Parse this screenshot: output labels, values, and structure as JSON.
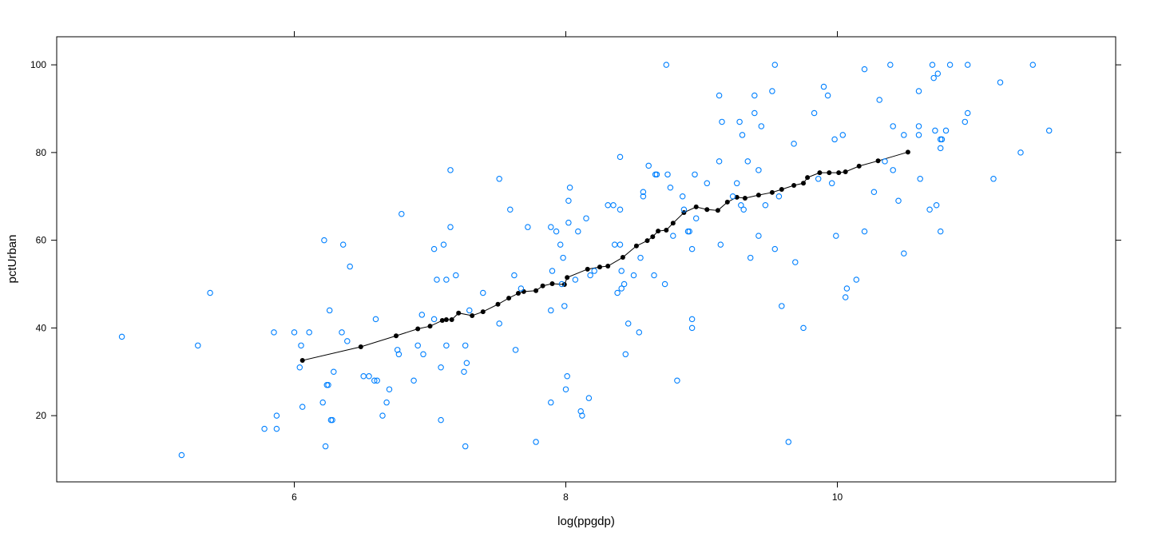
{
  "chart_data": {
    "type": "scatter",
    "title": "",
    "xlabel": "log(ppgdp)",
    "ylabel": "pctUrban",
    "xlim": [
      4.25,
      12.05
    ],
    "ylim": [
      4.9,
      106.4
    ],
    "x_ticks": [
      6,
      8,
      10
    ],
    "y_ticks": [
      20,
      40,
      60,
      80,
      100
    ],
    "x_tick_labels": [
      "6",
      "8",
      "10"
    ],
    "y_tick_labels": [
      "20",
      "40",
      "60",
      "80",
      "100"
    ],
    "grid": false,
    "legend": "none",
    "colors": {
      "points": "#0080ff",
      "line": "#000000"
    },
    "series": [
      {
        "type": "scatter",
        "marker": "open-circle",
        "points": [
          [
            4.73,
            38
          ],
          [
            5.17,
            11
          ],
          [
            5.29,
            36
          ],
          [
            5.38,
            48
          ],
          [
            5.78,
            17
          ],
          [
            5.85,
            39
          ],
          [
            5.87,
            20
          ],
          [
            5.87,
            17
          ],
          [
            6.0,
            39
          ],
          [
            6.04,
            31
          ],
          [
            6.05,
            36
          ],
          [
            6.06,
            22
          ],
          [
            6.11,
            39
          ],
          [
            6.21,
            23
          ],
          [
            6.22,
            60
          ],
          [
            6.23,
            13
          ],
          [
            6.24,
            27
          ],
          [
            6.25,
            27
          ],
          [
            6.26,
            44
          ],
          [
            6.27,
            19
          ],
          [
            6.28,
            19
          ],
          [
            6.29,
            30
          ],
          [
            6.35,
            39
          ],
          [
            6.36,
            59
          ],
          [
            6.39,
            37
          ],
          [
            6.41,
            54
          ],
          [
            6.51,
            29
          ],
          [
            6.55,
            29
          ],
          [
            6.59,
            28
          ],
          [
            6.61,
            28
          ],
          [
            6.6,
            42
          ],
          [
            6.65,
            20
          ],
          [
            6.68,
            23
          ],
          [
            6.7,
            26
          ],
          [
            6.76,
            35
          ],
          [
            6.77,
            34
          ],
          [
            6.79,
            66
          ],
          [
            6.88,
            28
          ],
          [
            6.91,
            36
          ],
          [
            6.94,
            43
          ],
          [
            6.95,
            34
          ],
          [
            7.03,
            42
          ],
          [
            7.03,
            58
          ],
          [
            7.05,
            51
          ],
          [
            7.08,
            31
          ],
          [
            7.08,
            19
          ],
          [
            7.1,
            59
          ],
          [
            7.12,
            36
          ],
          [
            7.12,
            51
          ],
          [
            7.15,
            76
          ],
          [
            7.15,
            63
          ],
          [
            7.19,
            52
          ],
          [
            7.25,
            30
          ],
          [
            7.26,
            36
          ],
          [
            7.26,
            13
          ],
          [
            7.27,
            32
          ],
          [
            7.29,
            44
          ],
          [
            7.39,
            48
          ],
          [
            7.51,
            74
          ],
          [
            7.51,
            41
          ],
          [
            7.59,
            67
          ],
          [
            7.62,
            52
          ],
          [
            7.63,
            35
          ],
          [
            7.67,
            49
          ],
          [
            7.72,
            63
          ],
          [
            7.78,
            14
          ],
          [
            7.89,
            44
          ],
          [
            7.89,
            63
          ],
          [
            7.89,
            23
          ],
          [
            7.9,
            53
          ],
          [
            7.93,
            62
          ],
          [
            7.96,
            59
          ],
          [
            7.97,
            50
          ],
          [
            7.98,
            56
          ],
          [
            7.99,
            45
          ],
          [
            8.0,
            26
          ],
          [
            8.01,
            29
          ],
          [
            8.02,
            64
          ],
          [
            8.02,
            69
          ],
          [
            8.03,
            72
          ],
          [
            8.07,
            51
          ],
          [
            8.09,
            62
          ],
          [
            8.11,
            21
          ],
          [
            8.12,
            20
          ],
          [
            8.15,
            65
          ],
          [
            8.17,
            24
          ],
          [
            8.18,
            52
          ],
          [
            8.21,
            53
          ],
          [
            8.31,
            68
          ],
          [
            8.35,
            68
          ],
          [
            8.36,
            59
          ],
          [
            8.38,
            48
          ],
          [
            8.4,
            59
          ],
          [
            8.4,
            79
          ],
          [
            8.4,
            67
          ],
          [
            8.41,
            53
          ],
          [
            8.41,
            49
          ],
          [
            8.43,
            50
          ],
          [
            8.44,
            34
          ],
          [
            8.46,
            41
          ],
          [
            8.5,
            52
          ],
          [
            8.54,
            39
          ],
          [
            8.55,
            56
          ],
          [
            8.57,
            70
          ],
          [
            8.57,
            71
          ],
          [
            8.61,
            77
          ],
          [
            8.65,
            52
          ],
          [
            8.66,
            75
          ],
          [
            8.67,
            75
          ],
          [
            8.73,
            50
          ],
          [
            8.74,
            100
          ],
          [
            8.75,
            75
          ],
          [
            8.77,
            72
          ],
          [
            8.79,
            61
          ],
          [
            8.82,
            28
          ],
          [
            8.86,
            70
          ],
          [
            8.87,
            67
          ],
          [
            8.9,
            62
          ],
          [
            8.91,
            62
          ],
          [
            8.93,
            42
          ],
          [
            8.93,
            40
          ],
          [
            8.93,
            58
          ],
          [
            8.95,
            75
          ],
          [
            8.96,
            65
          ],
          [
            9.04,
            73
          ],
          [
            9.13,
            78
          ],
          [
            9.13,
            93
          ],
          [
            9.14,
            59
          ],
          [
            9.15,
            87
          ],
          [
            9.23,
            70
          ],
          [
            9.26,
            73
          ],
          [
            9.28,
            87
          ],
          [
            9.29,
            68
          ],
          [
            9.3,
            84
          ],
          [
            9.31,
            67
          ],
          [
            9.34,
            78
          ],
          [
            9.36,
            56
          ],
          [
            9.39,
            89
          ],
          [
            9.39,
            93
          ],
          [
            9.42,
            76
          ],
          [
            9.42,
            61
          ],
          [
            9.44,
            86
          ],
          [
            9.47,
            68
          ],
          [
            9.52,
            94
          ],
          [
            9.54,
            100
          ],
          [
            9.54,
            58
          ],
          [
            9.57,
            70
          ],
          [
            9.59,
            45
          ],
          [
            9.64,
            14
          ],
          [
            9.68,
            82
          ],
          [
            9.69,
            55
          ],
          [
            9.75,
            40
          ],
          [
            9.83,
            89
          ],
          [
            9.86,
            74
          ],
          [
            9.9,
            95
          ],
          [
            9.93,
            93
          ],
          [
            9.96,
            73
          ],
          [
            9.98,
            83
          ],
          [
            9.99,
            61
          ],
          [
            10.04,
            84
          ],
          [
            10.06,
            47
          ],
          [
            10.07,
            49
          ],
          [
            10.14,
            51
          ],
          [
            10.2,
            99
          ],
          [
            10.2,
            62
          ],
          [
            10.27,
            71
          ],
          [
            10.31,
            92
          ],
          [
            10.35,
            78
          ],
          [
            10.39,
            100
          ],
          [
            10.41,
            86
          ],
          [
            10.41,
            76
          ],
          [
            10.45,
            69
          ],
          [
            10.49,
            84
          ],
          [
            10.49,
            57
          ],
          [
            10.6,
            86
          ],
          [
            10.6,
            94
          ],
          [
            10.6,
            84
          ],
          [
            10.61,
            74
          ],
          [
            10.68,
            67
          ],
          [
            10.7,
            100
          ],
          [
            10.71,
            97
          ],
          [
            10.72,
            85
          ],
          [
            10.73,
            68
          ],
          [
            10.74,
            98
          ],
          [
            10.76,
            81
          ],
          [
            10.76,
            62
          ],
          [
            10.76,
            83
          ],
          [
            10.77,
            83
          ],
          [
            10.8,
            85
          ],
          [
            10.83,
            100
          ],
          [
            10.94,
            87
          ],
          [
            10.96,
            100
          ],
          [
            10.96,
            89
          ],
          [
            11.15,
            74
          ],
          [
            11.2,
            96
          ],
          [
            11.35,
            80
          ],
          [
            11.44,
            100
          ],
          [
            11.56,
            85
          ]
        ]
      },
      {
        "type": "line",
        "marker": "filled-circle",
        "points": [
          [
            6.06,
            32.6
          ],
          [
            6.49,
            35.7
          ],
          [
            6.75,
            38.2
          ],
          [
            6.91,
            39.8
          ],
          [
            7.0,
            40.4
          ],
          [
            7.09,
            41.7
          ],
          [
            7.12,
            41.9
          ],
          [
            7.16,
            41.9
          ],
          [
            7.21,
            43.4
          ],
          [
            7.31,
            42.8
          ],
          [
            7.39,
            43.7
          ],
          [
            7.5,
            45.4
          ],
          [
            7.58,
            46.8
          ],
          [
            7.65,
            47.9
          ],
          [
            7.69,
            48.3
          ],
          [
            7.78,
            48.5
          ],
          [
            7.83,
            49.6
          ],
          [
            7.9,
            50.1
          ],
          [
            7.99,
            49.9
          ],
          [
            8.01,
            51.5
          ],
          [
            8.16,
            53.4
          ],
          [
            8.25,
            53.9
          ],
          [
            8.31,
            54.1
          ],
          [
            8.42,
            56.1
          ],
          [
            8.52,
            58.7
          ],
          [
            8.6,
            59.9
          ],
          [
            8.64,
            60.8
          ],
          [
            8.68,
            62.1
          ],
          [
            8.74,
            62.3
          ],
          [
            8.79,
            63.9
          ],
          [
            8.87,
            66.3
          ],
          [
            8.96,
            67.6
          ],
          [
            9.04,
            67.0
          ],
          [
            9.12,
            66.8
          ],
          [
            9.19,
            68.7
          ],
          [
            9.26,
            69.8
          ],
          [
            9.32,
            69.6
          ],
          [
            9.42,
            70.3
          ],
          [
            9.52,
            70.9
          ],
          [
            9.59,
            71.6
          ],
          [
            9.68,
            72.5
          ],
          [
            9.75,
            73.0
          ],
          [
            9.78,
            74.3
          ],
          [
            9.87,
            75.4
          ],
          [
            9.94,
            75.4
          ],
          [
            10.01,
            75.4
          ],
          [
            10.06,
            75.6
          ],
          [
            10.16,
            76.9
          ],
          [
            10.3,
            78.1
          ],
          [
            10.52,
            80.1
          ]
        ]
      }
    ]
  }
}
